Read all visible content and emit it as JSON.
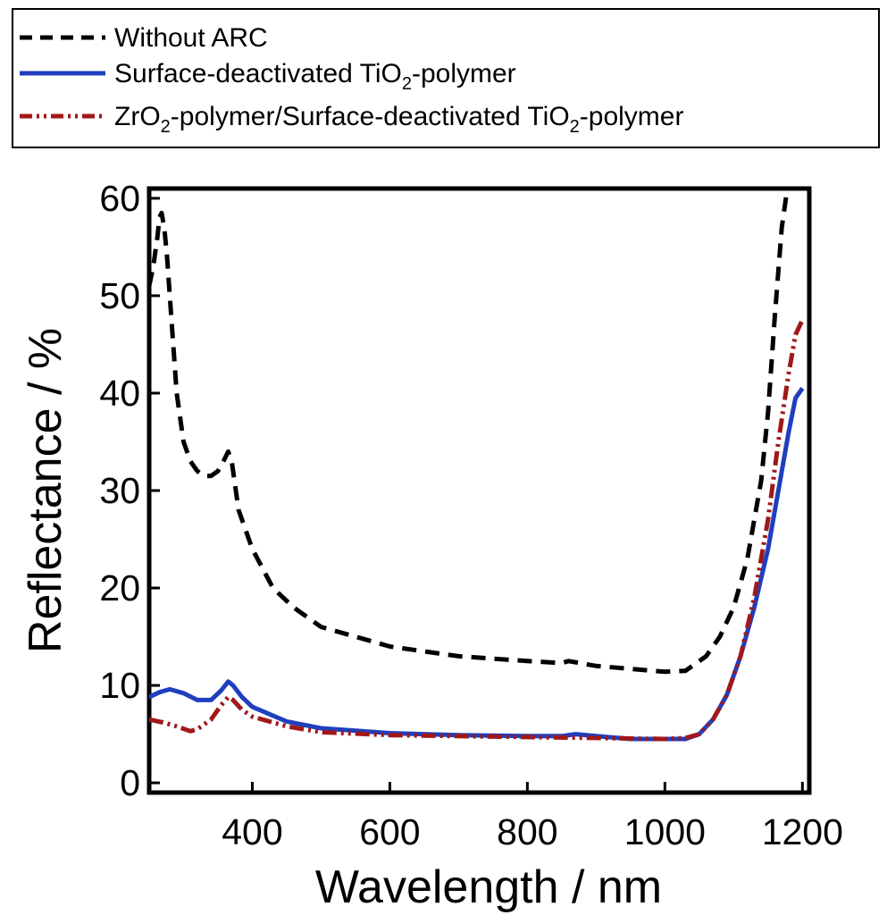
{
  "chart_data": {
    "type": "line",
    "title": "",
    "xlabel": "Wavelength / nm",
    "ylabel": "Reflectance / %",
    "xlim": [
      250,
      1210
    ],
    "ylim": [
      -1,
      61
    ],
    "xticks": [
      400,
      600,
      800,
      1000,
      1200
    ],
    "yticks": [
      0,
      10,
      20,
      30,
      40,
      50,
      60
    ],
    "legend_position": "top",
    "series": [
      {
        "name": "Without ARC",
        "label_parts": {
          "before": "Without ARC"
        },
        "color": "#000000",
        "style": "dashed",
        "x": [
          250,
          256,
          262,
          265,
          268,
          272,
          276,
          282,
          290,
          300,
          310,
          320,
          330,
          340,
          350,
          358,
          365,
          370,
          380,
          400,
          430,
          460,
          500,
          550,
          600,
          700,
          800,
          850,
          860,
          900,
          950,
          1000,
          1030,
          1060,
          1080,
          1100,
          1120,
          1140,
          1150,
          1160,
          1170,
          1178
        ],
        "y": [
          51,
          53,
          56,
          58,
          58.5,
          57,
          54,
          48,
          40,
          35,
          33,
          32,
          31.5,
          31.5,
          32,
          33,
          34,
          33,
          28,
          24,
          20,
          18,
          16,
          15,
          14,
          13,
          12.5,
          12.3,
          12.5,
          12,
          11.7,
          11.4,
          11.5,
          13,
          15,
          18,
          23,
          31,
          38,
          48,
          57,
          61
        ]
      },
      {
        "name": "Surface-deactivated TiO2-polymer",
        "label_parts": {
          "before": "Surface-deactivated Ti",
          "sub": "O2",
          "after": "-polymer"
        },
        "color": "#1f3fbf",
        "style": "solid",
        "x": [
          250,
          265,
          280,
          300,
          320,
          340,
          355,
          365,
          372,
          385,
          400,
          450,
          500,
          600,
          700,
          800,
          850,
          870,
          900,
          950,
          1000,
          1030,
          1050,
          1070,
          1090,
          1110,
          1130,
          1150,
          1165,
          1180,
          1190,
          1200
        ],
        "y": [
          8.8,
          9.3,
          9.6,
          9.2,
          8.5,
          8.5,
          9.5,
          10.4,
          10,
          8.8,
          7.8,
          6.3,
          5.6,
          5.1,
          4.9,
          4.8,
          4.8,
          5,
          4.8,
          4.5,
          4.5,
          4.5,
          5,
          6.5,
          9,
          13,
          18,
          24,
          30,
          36,
          39.5,
          40.5
        ]
      },
      {
        "name": "ZrO2-polymer/Surface-deactivated TiO2-polymer",
        "label_parts": {
          "before": "Zr",
          "sub": "O2",
          "mid": "-polymer/Surface-deactivated Ti",
          "sub2": "O2",
          "after": "-polymer"
        },
        "color": "#a01818",
        "style": "dash-dot-dot",
        "x": [
          250,
          270,
          290,
          310,
          320,
          340,
          355,
          365,
          372,
          385,
          400,
          450,
          500,
          600,
          700,
          800,
          900,
          1000,
          1030,
          1050,
          1070,
          1090,
          1110,
          1130,
          1150,
          1165,
          1180,
          1190,
          1200
        ],
        "y": [
          6.5,
          6.2,
          5.8,
          5.3,
          5.5,
          6.5,
          8,
          8.8,
          8.5,
          7.5,
          6.8,
          5.8,
          5.2,
          4.9,
          4.8,
          4.7,
          4.6,
          4.5,
          4.6,
          5,
          6.5,
          9,
          13,
          19,
          27,
          35,
          42,
          46,
          47.5
        ]
      }
    ]
  },
  "sub_digit": "2"
}
